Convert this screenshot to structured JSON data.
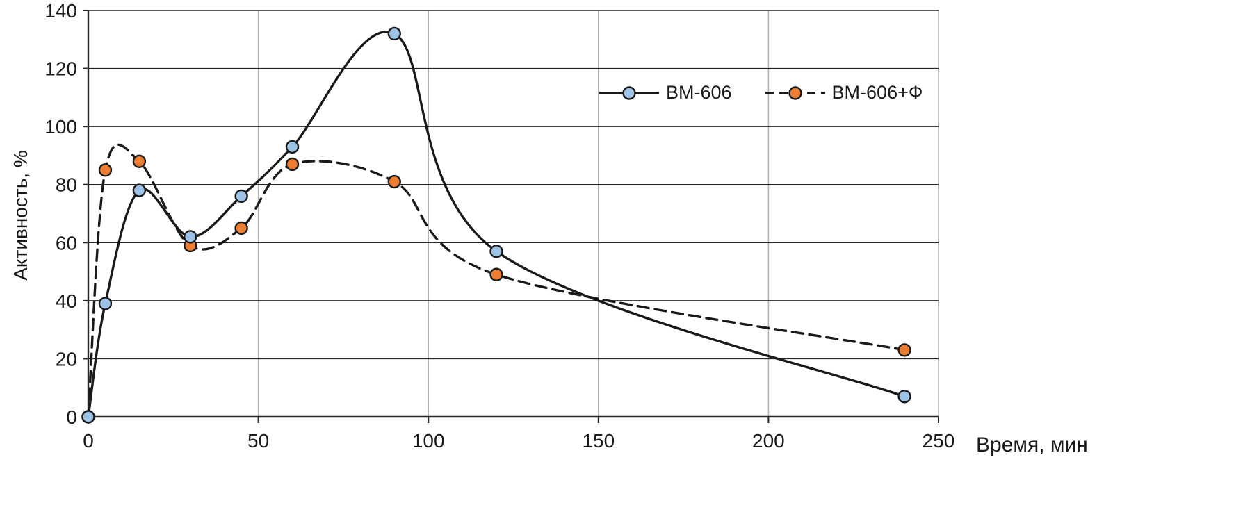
{
  "chart_data": {
    "type": "line",
    "title": "",
    "xlabel": "Время, мин",
    "ylabel": "Активность, %",
    "xlim": [
      0,
      250
    ],
    "ylim": [
      0,
      140
    ],
    "xticks": [
      0,
      50,
      100,
      150,
      200,
      250
    ],
    "yticks": [
      0,
      20,
      40,
      60,
      80,
      100,
      120,
      140
    ],
    "grid": {
      "horizontal": true,
      "vertical": true
    },
    "legend_position": "top-right-inside",
    "x": [
      0,
      5,
      15,
      30,
      45,
      60,
      90,
      120,
      240
    ],
    "series": [
      {
        "name": "ВМ-606",
        "style": "solid",
        "line_color": "#1a1a1a",
        "marker_color": "#9DC3E6",
        "values": [
          0,
          39,
          78,
          62,
          76,
          93,
          132,
          57,
          7
        ]
      },
      {
        "name": "ВМ-606+Ф",
        "style": "dashed",
        "line_color": "#1a1a1a",
        "marker_color": "#ED7D31",
        "values": [
          0,
          85,
          88,
          59,
          65,
          87,
          81,
          49,
          23
        ]
      }
    ],
    "colors": {
      "grid_horizontal": "#262626",
      "grid_vertical": "#b3b3b3",
      "axis": "#262626",
      "tick_text": "#1a1a1a"
    }
  }
}
